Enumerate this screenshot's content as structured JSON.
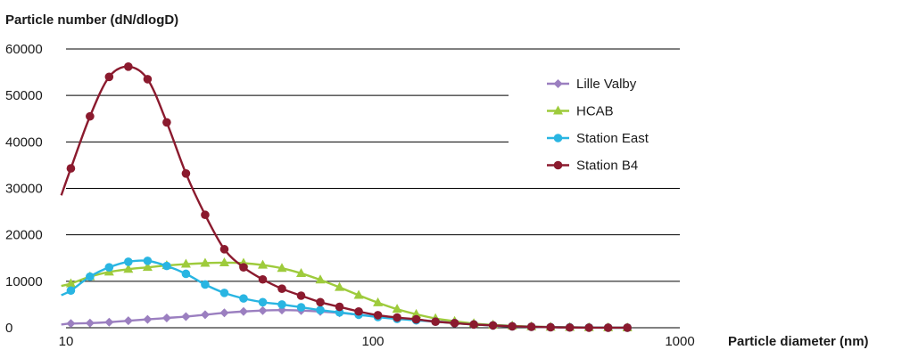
{
  "chart_data": {
    "type": "line",
    "title": "",
    "ylabel": "Particle number (dN/dlogD)",
    "xlabel": "Particle diameter (nm)",
    "x_scale": "log",
    "xlim": [
      10,
      1000
    ],
    "ylim": [
      0,
      60000
    ],
    "y_ticks": [
      "0",
      "10000",
      "20000",
      "30000",
      "40000",
      "50000",
      "60000"
    ],
    "x_ticks": [
      "10",
      "100",
      "1000"
    ],
    "grid": "horizontal",
    "legend_position": "right",
    "x": [
      9.65,
      10.37,
      11.97,
      13.82,
      15.96,
      18.44,
      21.29,
      24.59,
      28.4,
      32.8,
      37.88,
      43.75,
      50.52,
      58.35,
      67.38,
      77.82,
      89.87,
      103.8,
      119.9,
      138.4,
      159.9,
      184.6,
      213.2,
      246.2,
      284.4,
      328.4,
      379.3,
      438.0,
      505.8,
      584.1,
      674.6
    ],
    "series": [
      {
        "name": "Lille Valby",
        "color": "#9b7fc0",
        "marker": "diamond",
        "values": [
          700,
          900,
          1000,
          1200,
          1500,
          1800,
          2100,
          2400,
          2800,
          3200,
          3500,
          3700,
          3800,
          3700,
          3500,
          3200,
          2800,
          2400,
          2000,
          1700,
          1400,
          1100,
          800,
          600,
          400,
          250,
          150,
          100,
          50,
          20,
          10
        ]
      },
      {
        "name": "HCAB",
        "color": "#9ecb3c",
        "marker": "triangle",
        "values": [
          9000,
          9500,
          11000,
          12000,
          12600,
          13000,
          13400,
          13700,
          13900,
          14000,
          13900,
          13500,
          12800,
          11700,
          10300,
          8700,
          7000,
          5400,
          4000,
          2900,
          2000,
          1400,
          900,
          600,
          400,
          250,
          150,
          100,
          50,
          20,
          10
        ]
      },
      {
        "name": "Station East",
        "color": "#29b5e2",
        "marker": "circle",
        "values": [
          7000,
          8000,
          11000,
          13000,
          14200,
          14400,
          13300,
          11600,
          9300,
          7500,
          6300,
          5500,
          5000,
          4400,
          3800,
          3300,
          2800,
          2300,
          1900,
          1600,
          1300,
          1000,
          700,
          500,
          300,
          200,
          120,
          80,
          40,
          20,
          10
        ]
      },
      {
        "name": "Station B4",
        "color": "#8b1a2e",
        "marker": "circle",
        "values": [
          28500,
          34300,
          45500,
          54000,
          56200,
          53500,
          44200,
          33200,
          24300,
          16900,
          13000,
          10400,
          8400,
          6900,
          5500,
          4500,
          3500,
          2700,
          2200,
          1800,
          1300,
          1000,
          700,
          500,
          300,
          200,
          100,
          50,
          20,
          10,
          10
        ]
      }
    ]
  }
}
